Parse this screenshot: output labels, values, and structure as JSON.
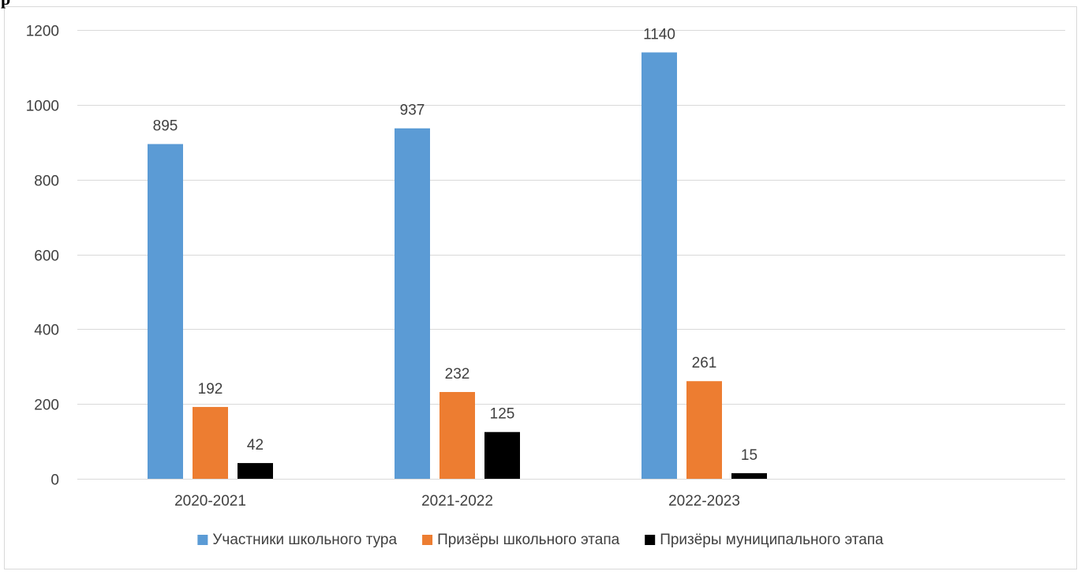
{
  "chart_data": {
    "type": "bar",
    "title": "",
    "xlabel": "",
    "ylabel": "",
    "categories": [
      "2020-2021",
      "2021-2022",
      "2022-2023"
    ],
    "series": [
      {
        "name": "Участники школьного тура",
        "values": [
          895,
          937,
          1140
        ],
        "color": "#5b9bd5"
      },
      {
        "name": "Призёры школьного этапа",
        "values": [
          192,
          232,
          261
        ],
        "color": "#ed7d31"
      },
      {
        "name": "Призёры муниципального этапа",
        "values": [
          42,
          125,
          15
        ],
        "color": "#000000"
      }
    ],
    "ylim": [
      0,
      1200
    ],
    "yticks": [
      0,
      200,
      400,
      600,
      800,
      1000,
      1200
    ],
    "grid": true,
    "legend_position": "bottom",
    "data_labels": true
  },
  "page": {
    "corner_text": "р"
  }
}
